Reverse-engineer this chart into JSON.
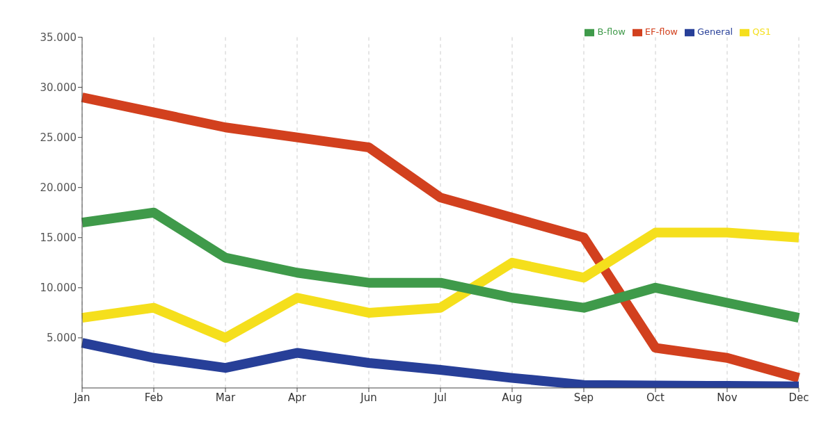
{
  "chart_data": {
    "type": "line",
    "categories": [
      "Jan",
      "Feb",
      "Mar",
      "Apr",
      "Jun",
      "Jul",
      "Aug",
      "Sep",
      "Oct",
      "Nov",
      "Dec"
    ],
    "series": [
      {
        "name": "EF-flow",
        "color": "#d2401e",
        "values": [
          29000,
          27500,
          26000,
          25000,
          24000,
          19000,
          17000,
          15000,
          4000,
          3000,
          1000
        ]
      },
      {
        "name": "QS1",
        "color": "#f5df1c",
        "values": [
          7000,
          8000,
          5000,
          9000,
          7500,
          8000,
          12500,
          11000,
          15500,
          15500,
          15000
        ]
      },
      {
        "name": "B-flow",
        "color": "#3f9a4a",
        "values": [
          16500,
          17500,
          13000,
          11500,
          10500,
          10500,
          9000,
          8000,
          10000,
          8500,
          7000
        ]
      },
      {
        "name": "General",
        "color": "#273f98",
        "values": [
          4500,
          3000,
          2000,
          3500,
          2500,
          1800,
          1000,
          300,
          250,
          200,
          150
        ]
      }
    ],
    "ylim": [
      0,
      35000
    ],
    "yticks": [
      {
        "value": 5000,
        "label": "5.000"
      },
      {
        "value": 10000,
        "label": "10.000"
      },
      {
        "value": 15000,
        "label": "15.000"
      },
      {
        "value": 20000,
        "label": "20.000"
      },
      {
        "value": 25000,
        "label": "25.000"
      },
      {
        "value": 30000,
        "label": "30.000"
      },
      {
        "value": 35000,
        "label": "35.000"
      }
    ],
    "grid": "x",
    "legend": "top right",
    "marker": "none",
    "line_style": "solid"
  }
}
